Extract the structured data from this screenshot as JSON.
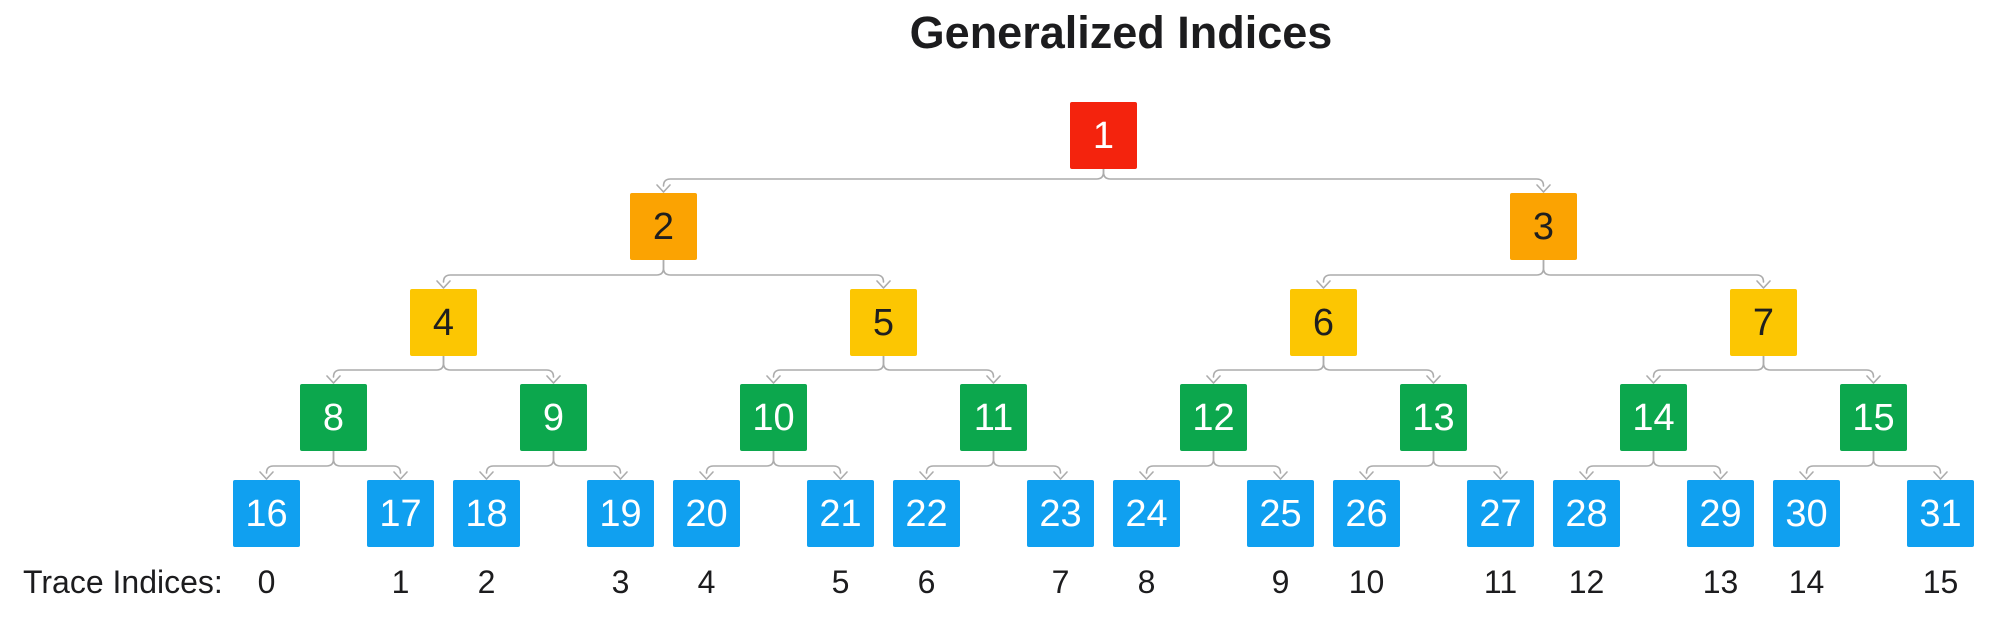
{
  "title": "Generalized Indices",
  "trace_row": {
    "label": "Trace Indices:",
    "values": [
      "0",
      "1",
      "2",
      "3",
      "4",
      "5",
      "6",
      "7",
      "8",
      "9",
      "10",
      "11",
      "12",
      "13",
      "14",
      "15"
    ]
  },
  "tree": {
    "levels": [
      {
        "name": "root",
        "color": "#F4230D",
        "text_color": "#FFFFFF",
        "values": [
          "1"
        ]
      },
      {
        "name": "level-2",
        "color": "#FBA302",
        "text_color": "#1F1F1F",
        "values": [
          "2",
          "3"
        ]
      },
      {
        "name": "level-3",
        "color": "#FCC602",
        "text_color": "#1F1F1F",
        "values": [
          "4",
          "5",
          "6",
          "7"
        ]
      },
      {
        "name": "level-4",
        "color": "#0CA74D",
        "text_color": "#FFFFFF",
        "values": [
          "8",
          "9",
          "10",
          "11",
          "12",
          "13",
          "14",
          "15"
        ]
      },
      {
        "name": "leaves",
        "color": "#10A0F0",
        "text_color": "#FFFFFF",
        "values": [
          "16",
          "17",
          "18",
          "19",
          "20",
          "21",
          "22",
          "23",
          "24",
          "25",
          "26",
          "27",
          "28",
          "29",
          "30",
          "31"
        ]
      }
    ],
    "connector_color": "#ACACAC"
  }
}
